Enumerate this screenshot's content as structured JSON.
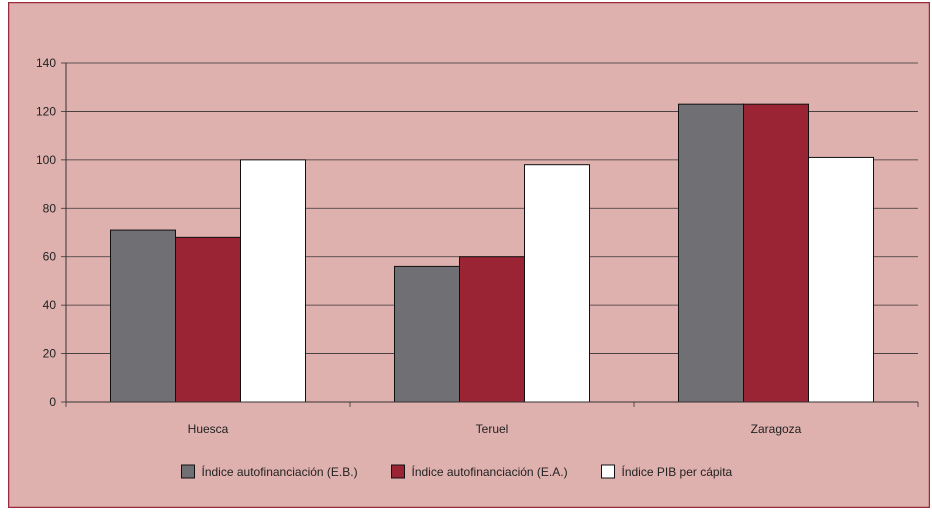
{
  "chart_data": {
    "type": "bar",
    "categories": [
      "Huesca",
      "Teruel",
      "Zaragoza"
    ],
    "series": [
      {
        "name": "Índice autofinanciación (E.B.)",
        "values": [
          71,
          56,
          123
        ]
      },
      {
        "name": "Índice autofinanciación (E.A.)",
        "values": [
          68,
          60,
          123
        ]
      },
      {
        "name": "Índice PIB per cápita",
        "values": [
          100,
          98,
          101
        ]
      }
    ],
    "ylim": [
      0,
      140
    ],
    "yticks": [
      0,
      20,
      40,
      60,
      80,
      100,
      120,
      140
    ],
    "grid": true,
    "legend_position": "bottom",
    "colors": {
      "background": "#dfb1ae",
      "frame": "#9b2a3a",
      "series": [
        "#6f6f74",
        "#9a2433",
        "#ffffff"
      ],
      "bar_outline": "#111111",
      "grid": "#333333"
    }
  }
}
